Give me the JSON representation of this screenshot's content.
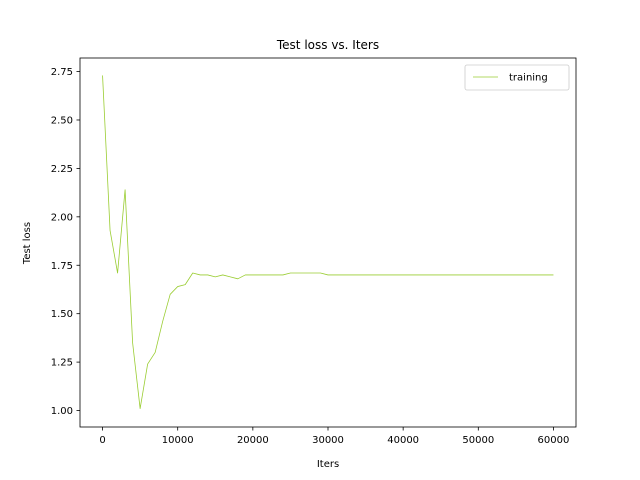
{
  "chart_data": {
    "type": "line",
    "title": "Test loss  vs. Iters",
    "xlabel": "Iters",
    "ylabel": "Test loss",
    "xlim": [
      -3000,
      63000
    ],
    "ylim": [
      0.915,
      2.82
    ],
    "xticks": [
      0,
      10000,
      20000,
      30000,
      40000,
      50000,
      60000
    ],
    "yticks": [
      1.0,
      1.25,
      1.5,
      1.75,
      2.0,
      2.25,
      2.5,
      2.75
    ],
    "ytick_format": 2,
    "grid": false,
    "legend_position": "top-right",
    "series": [
      {
        "name": "training",
        "color": "#9acd32",
        "x": [
          0,
          1000,
          2000,
          3000,
          4000,
          5000,
          6000,
          7000,
          8000,
          9000,
          10000,
          11000,
          12000,
          13000,
          14000,
          15000,
          16000,
          17000,
          18000,
          19000,
          20000,
          21000,
          22000,
          23000,
          24000,
          25000,
          26000,
          27000,
          28000,
          29000,
          30000,
          40000,
          50000,
          60000
        ],
        "values": [
          2.73,
          1.93,
          1.71,
          2.14,
          1.35,
          1.01,
          1.24,
          1.3,
          1.46,
          1.6,
          1.64,
          1.65,
          1.71,
          1.7,
          1.7,
          1.69,
          1.7,
          1.69,
          1.68,
          1.7,
          1.7,
          1.7,
          1.7,
          1.7,
          1.7,
          1.71,
          1.71,
          1.71,
          1.71,
          1.71,
          1.7,
          1.7,
          1.7,
          1.7
        ]
      }
    ]
  }
}
